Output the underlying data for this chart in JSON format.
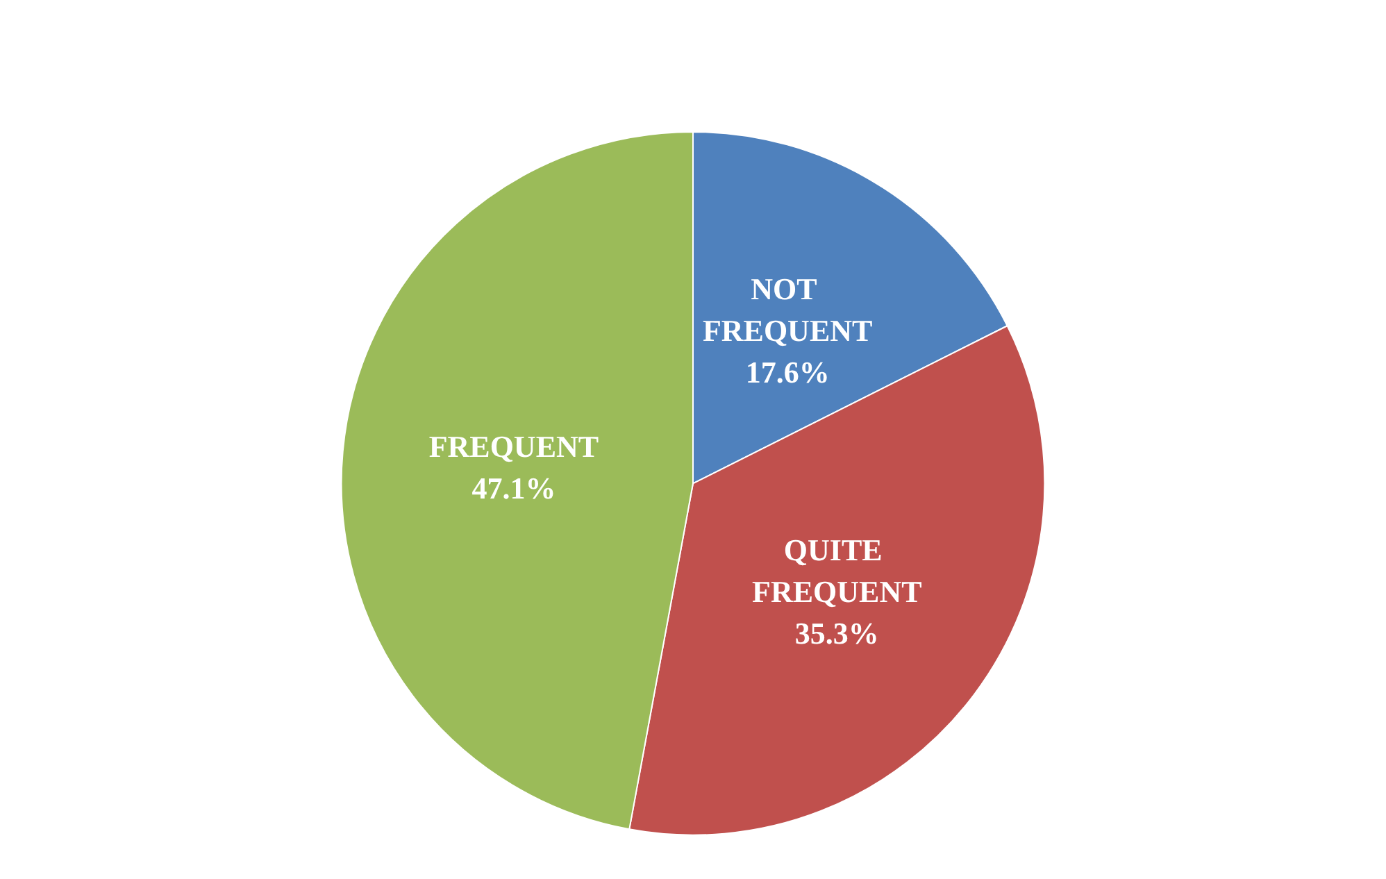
{
  "chart_data": {
    "type": "pie",
    "categories": [
      "NOT FREQUENT",
      "QUITE FREQUENT",
      "FREQUENT"
    ],
    "values": [
      17.6,
      35.3,
      47.1
    ],
    "colors": [
      "#4f81bd",
      "#c0504d",
      "#9bbb59"
    ],
    "value_labels": [
      "17.6%",
      "35.3%",
      "47.1%"
    ],
    "legend": false
  }
}
